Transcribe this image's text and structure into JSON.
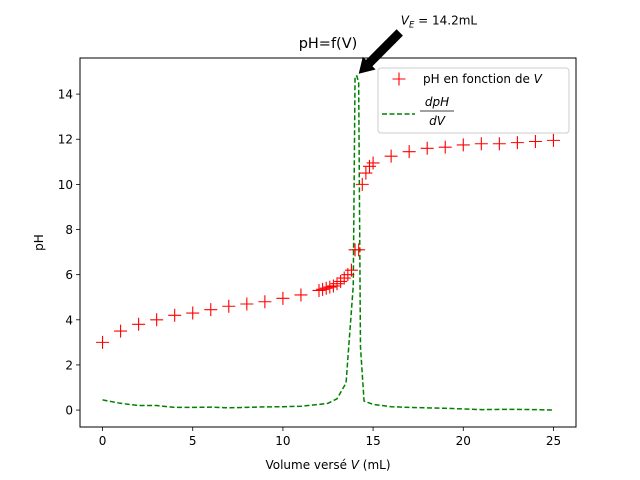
{
  "chart_data": {
    "type": "scatter",
    "title": "pH=f(V)",
    "xlabel": "Volume versé V (mL)",
    "xlabel_parts": {
      "pre": "Volume versé ",
      "var": "V",
      "post": " (mL)"
    },
    "ylabel": "pH",
    "xlim": [
      -1.25,
      26.25
    ],
    "ylim": [
      -0.75,
      15.6
    ],
    "x_ticks": [
      0,
      5,
      10,
      15,
      20,
      25
    ],
    "y_ticks": [
      0,
      2,
      4,
      6,
      8,
      10,
      12,
      14
    ],
    "grid": false,
    "legend_position": "upper right",
    "series": [
      {
        "name": "pH en fonction de V",
        "label_parts": {
          "pre": "pH en fonction de ",
          "var": "V"
        },
        "marker": "plus",
        "color": "#ff0000",
        "x": [
          0,
          1,
          2,
          3,
          4,
          5,
          6,
          7,
          8,
          9,
          10,
          11,
          12,
          12.2,
          12.4,
          12.6,
          12.8,
          13,
          13.2,
          13.4,
          13.6,
          13.8,
          14,
          14.2,
          14.4,
          14.6,
          14.8,
          15,
          16,
          17,
          18,
          19,
          20,
          21,
          22,
          23,
          24,
          25
        ],
        "y": [
          3.0,
          3.5,
          3.8,
          4.0,
          4.2,
          4.3,
          4.45,
          4.6,
          4.7,
          4.8,
          4.95,
          5.1,
          5.3,
          5.35,
          5.4,
          5.45,
          5.5,
          5.6,
          5.7,
          5.85,
          6.0,
          6.2,
          7.1,
          7.1,
          10.0,
          10.5,
          10.8,
          10.95,
          11.25,
          11.45,
          11.6,
          11.65,
          11.75,
          11.8,
          11.8,
          11.85,
          11.9,
          11.95
        ]
      },
      {
        "name": "dpH/dV",
        "label_parts": {
          "num": "dpH",
          "den": "dV"
        },
        "line_style": "dashed",
        "color": "#008000",
        "x": [
          0,
          1,
          2,
          3,
          4,
          5,
          6,
          7,
          8,
          9,
          10,
          11,
          12,
          12.5,
          13,
          13.5,
          13.9,
          14,
          14.1,
          14.2,
          14.3,
          14.5,
          15,
          16,
          17,
          18,
          19,
          20,
          21,
          22,
          23,
          24,
          25
        ],
        "y": [
          0.45,
          0.3,
          0.2,
          0.2,
          0.12,
          0.12,
          0.13,
          0.1,
          0.12,
          0.14,
          0.15,
          0.17,
          0.25,
          0.3,
          0.5,
          1.2,
          5.5,
          14.8,
          14.8,
          14.5,
          2.8,
          0.4,
          0.25,
          0.15,
          0.12,
          0.1,
          0.08,
          0.05,
          0.02,
          0.03,
          0.03,
          0.02,
          0.0
        ]
      }
    ],
    "annotation": {
      "text_var": "V",
      "text_sub": "E",
      "text_rest": " = 14.2mL",
      "point": [
        14.2,
        14.9
      ],
      "text_at": [
        16.7,
        17.0
      ],
      "arrow_color": "#000000"
    }
  }
}
